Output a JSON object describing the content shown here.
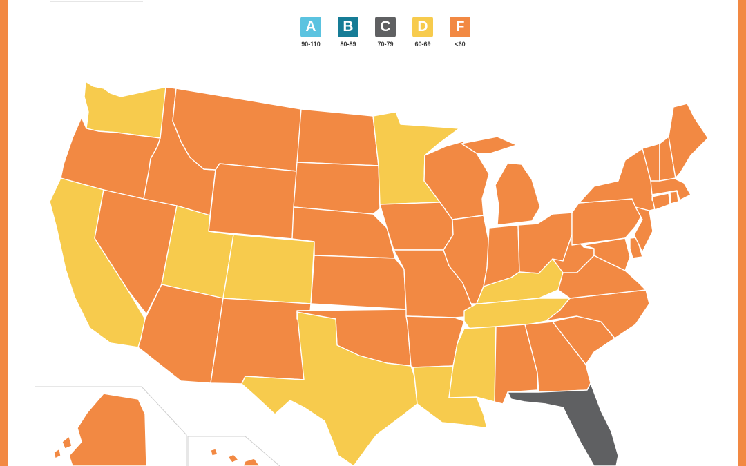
{
  "legend": {
    "items": [
      {
        "grade": "A",
        "range": "90-110",
        "color": "#5BC3E0"
      },
      {
        "grade": "B",
        "range": "80-89",
        "color": "#167C96"
      },
      {
        "grade": "C",
        "range": "70-79",
        "color": "#5F6062"
      },
      {
        "grade": "D",
        "range": "60-69",
        "color": "#F7CB4D"
      },
      {
        "grade": "F",
        "range": "<60",
        "color": "#F28943"
      }
    ]
  },
  "map": {
    "frame_color": "#F28943",
    "state_grades": {
      "WA": "D",
      "OR": "F",
      "CA": "D",
      "NV": "F",
      "ID": "F",
      "MT": "F",
      "WY": "F",
      "UT": "D",
      "CO": "D",
      "AZ": "F",
      "NM": "F",
      "ND": "F",
      "SD": "F",
      "NE": "F",
      "KS": "F",
      "OK": "F",
      "TX": "D",
      "MN": "D",
      "IA": "F",
      "MO": "F",
      "AR": "F",
      "LA": "D",
      "WI": "F",
      "IL": "F",
      "MI": "F",
      "IN": "F",
      "OH": "F",
      "KY": "D",
      "TN": "D",
      "MS": "D",
      "AL": "F",
      "GA": "F",
      "FL": "C",
      "SC": "F",
      "NC": "F",
      "VA": "F",
      "WV": "F",
      "PA": "F",
      "NY": "F",
      "VT": "F",
      "NH": "F",
      "ME": "F",
      "MA": "F",
      "CT": "F",
      "RI": "F",
      "NJ": "F",
      "DE": "F",
      "MD": "F",
      "AK": "F",
      "HI": "F"
    }
  }
}
